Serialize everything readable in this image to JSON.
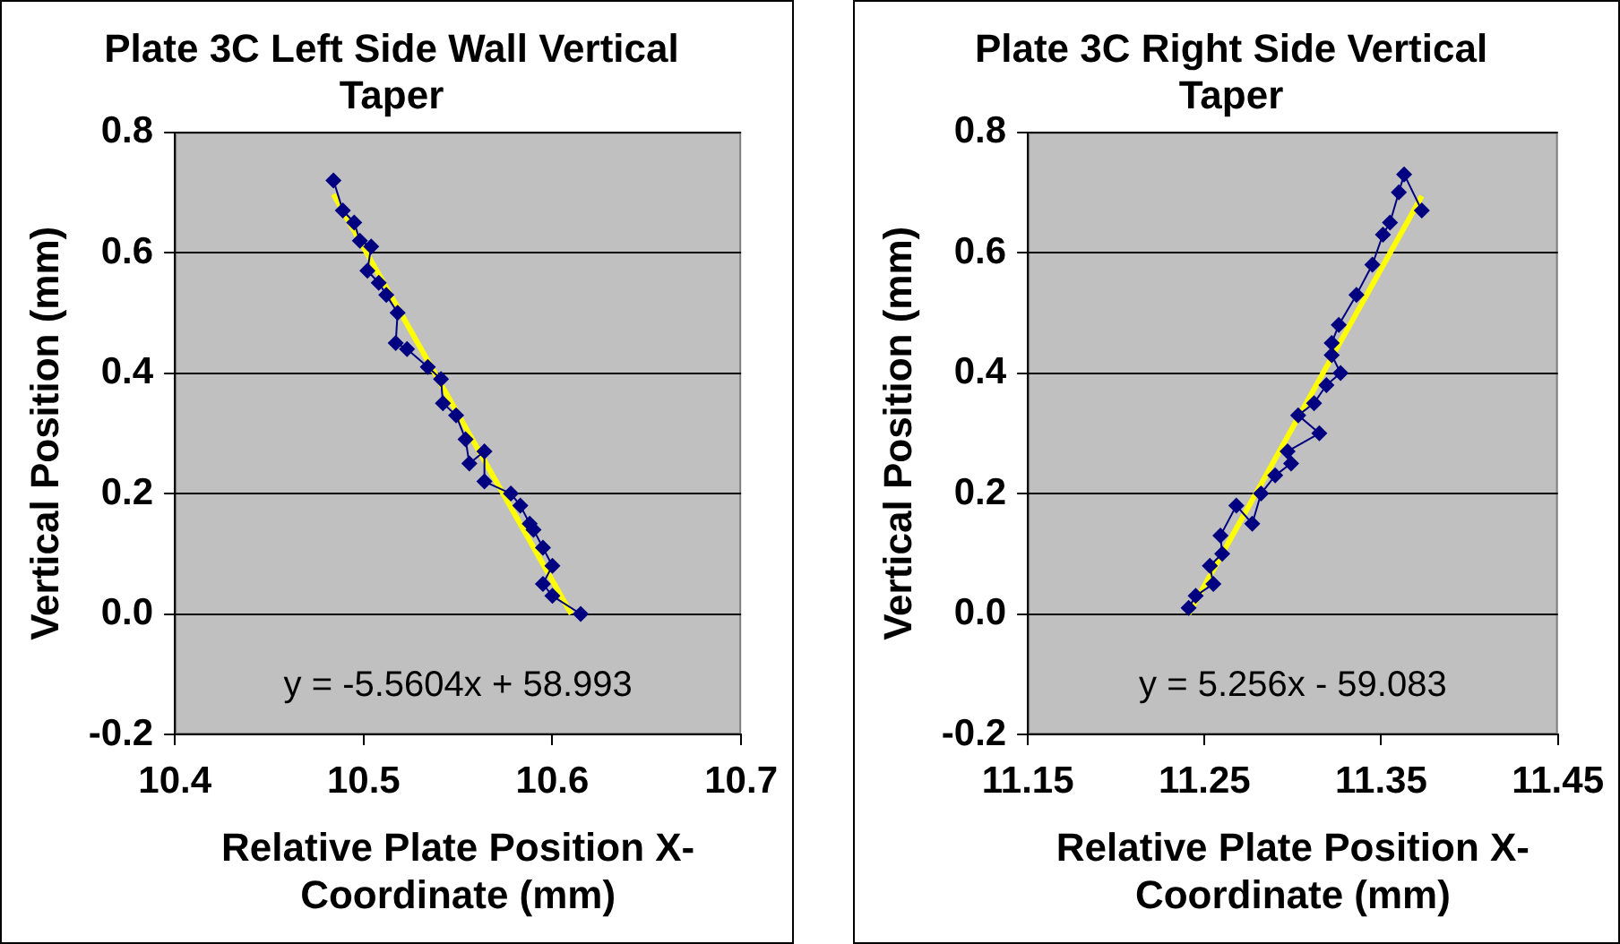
{
  "chart_data": [
    {
      "type": "scatter",
      "title": "Plate 3C Left Side Wall Vertical Taper",
      "xlabel": "Relative Plate Position X-Coordinate (mm)",
      "ylabel": "Vertical Position (mm)",
      "xlim": [
        10.4,
        10.7
      ],
      "xticks": [
        10.4,
        10.5,
        10.6,
        10.7
      ],
      "ylim": [
        -0.2,
        0.8
      ],
      "yticks": [
        -0.2,
        {
          "value": 0,
          "label": "0.0"
        },
        0.2,
        0.4,
        0.6,
        0.8
      ],
      "grid": "y",
      "annotations": [
        "y = -5.5604x + 58.993"
      ],
      "series": [
        {
          "type": "line",
          "marker": "diamond",
          "color": "#000080",
          "x": [
            10.484,
            10.489,
            10.495,
            10.498,
            10.504,
            10.502,
            10.508,
            10.512,
            10.518,
            10.517,
            10.523,
            10.534,
            10.541,
            10.542,
            10.549,
            10.554,
            10.556,
            10.564,
            10.564,
            10.578,
            10.583,
            10.588,
            10.59,
            10.595,
            10.6,
            10.595,
            10.6,
            10.615
          ],
          "values": [
            0.72,
            0.67,
            0.65,
            0.62,
            0.61,
            0.57,
            0.55,
            0.53,
            0.5,
            0.45,
            0.44,
            0.41,
            0.39,
            0.35,
            0.33,
            0.29,
            0.25,
            0.27,
            0.22,
            0.2,
            0.18,
            0.15,
            0.14,
            0.11,
            0.08,
            0.05,
            0.03,
            0.0
          ]
        },
        {
          "type": "line",
          "marker": "none",
          "color": "#ffff00",
          "x": [
            10.484,
            10.61
          ],
          "values": [
            0.697,
            0.0
          ]
        }
      ]
    },
    {
      "type": "scatter",
      "title": "Plate 3C Right Side Vertical Taper",
      "xlabel": "Relative Plate Position X-Coordinate (mm)",
      "ylabel": "Vertical Position (mm)",
      "xlim": [
        11.15,
        11.45
      ],
      "xticks": [
        11.15,
        11.25,
        11.35,
        11.45
      ],
      "ylim": [
        -0.2,
        0.8
      ],
      "yticks": [
        -0.2,
        {
          "value": 0,
          "label": "0.0"
        },
        0.2,
        0.4,
        0.6,
        0.8
      ],
      "grid": "y",
      "annotations": [
        "y = 5.256x - 59.083"
      ],
      "series": [
        {
          "type": "line",
          "marker": "diamond",
          "color": "#000080",
          "x": [
            11.241,
            11.245,
            11.255,
            11.253,
            11.26,
            11.259,
            11.268,
            11.277,
            11.282,
            11.29,
            11.299,
            11.297,
            11.315,
            11.303,
            11.312,
            11.319,
            11.327,
            11.322,
            11.322,
            11.326,
            11.336,
            11.345,
            11.351,
            11.355,
            11.36,
            11.363,
            11.373
          ],
          "values": [
            0.01,
            0.03,
            0.05,
            0.08,
            0.1,
            0.13,
            0.18,
            0.15,
            0.2,
            0.23,
            0.25,
            0.27,
            0.3,
            0.33,
            0.35,
            0.38,
            0.4,
            0.43,
            0.45,
            0.48,
            0.53,
            0.58,
            0.63,
            0.65,
            0.7,
            0.73,
            0.67
          ]
        },
        {
          "type": "line",
          "marker": "none",
          "color": "#ffff00",
          "x": [
            11.241,
            11.373
          ],
          "values": [
            0.0,
            0.694
          ]
        }
      ]
    }
  ]
}
